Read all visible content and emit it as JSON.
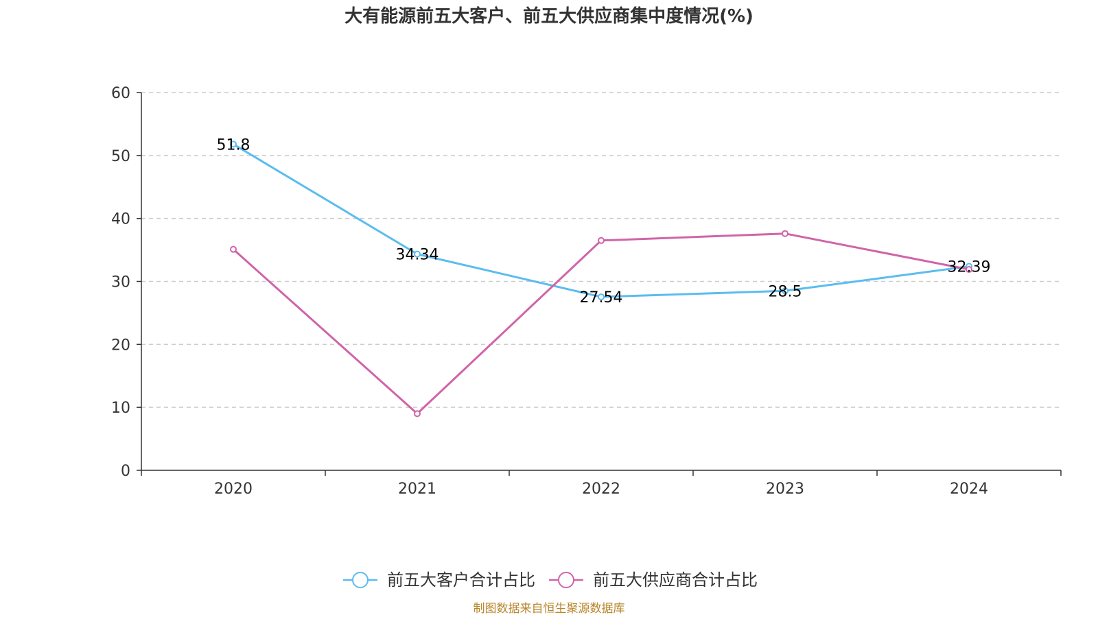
{
  "chart_data": {
    "type": "line",
    "title": "大有能源前五大客户、前五大供应商集中度情况(%)",
    "categories": [
      "2020",
      "2021",
      "2022",
      "2023",
      "2024"
    ],
    "ylim": [
      0,
      60
    ],
    "yticks": [
      0,
      10,
      20,
      30,
      40,
      50,
      60
    ],
    "grid": true,
    "legend_position": "bottom-center",
    "series": [
      {
        "name": "前五大客户合计占比",
        "color": "#5bbcef",
        "values": [
          51.8,
          34.34,
          27.54,
          28.5,
          32.39
        ],
        "labels": [
          "51.8",
          "34.34",
          "27.54",
          "28.5",
          "32.39"
        ]
      },
      {
        "name": "前五大供应商合计占比",
        "color": "#d064a8",
        "values": [
          35.1,
          9.0,
          36.5,
          37.6,
          31.9
        ],
        "labels": []
      }
    ],
    "source": "制图数据来自恒生聚源数据库"
  }
}
